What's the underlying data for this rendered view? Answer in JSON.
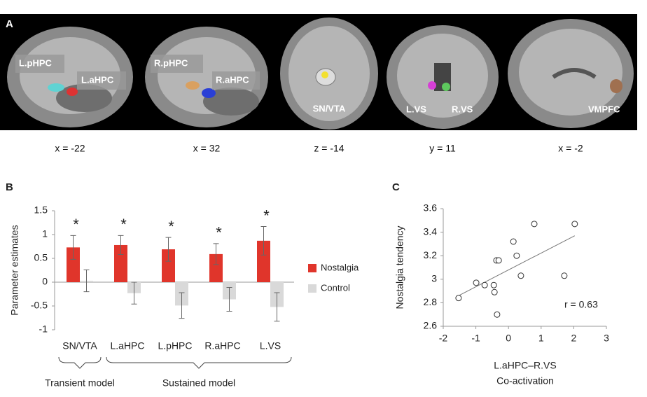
{
  "panel_a": {
    "label": "A",
    "images": [
      {
        "labels": [
          "L.pHPC",
          "L.aHPC"
        ],
        "coordinate": "x = -22"
      },
      {
        "labels": [
          "R.pHPC",
          "R.aHPC"
        ],
        "coordinate": "x = 32"
      },
      {
        "labels": [
          "SN/VTA"
        ],
        "coordinate": "z = -14"
      },
      {
        "labels": [
          "L.VS",
          "R.VS"
        ],
        "coordinate": "y = 11"
      },
      {
        "labels": [
          "VMPFC"
        ],
        "coordinate": "x = -2"
      }
    ]
  },
  "chart_data": [
    {
      "type": "bar",
      "panel_label": "B",
      "y_label": "Parameter estimates",
      "categories": [
        "SN/VTA",
        "L.aHPC",
        "L.pHPC",
        "R.aHPC",
        "L.VS"
      ],
      "series": [
        {
          "name": "Nostalgia",
          "color": "#e0352b",
          "values": [
            0.73,
            0.78,
            0.69,
            0.59,
            0.87
          ],
          "errors": [
            0.25,
            0.2,
            0.25,
            0.22,
            0.3
          ]
        },
        {
          "name": "Control",
          "color": "#d9d9d9",
          "values": [
            0.03,
            -0.23,
            -0.49,
            -0.36,
            -0.52
          ],
          "errors": [
            0.23,
            0.23,
            0.27,
            0.25,
            0.3
          ]
        }
      ],
      "annotations": [
        "*",
        "*",
        "*",
        "*",
        "*"
      ],
      "groups": [
        {
          "label": "Transient model",
          "categories": [
            0,
            0
          ]
        },
        {
          "label": "Sustained model",
          "categories": [
            1,
            4
          ]
        }
      ],
      "ylim": [
        -1,
        1.5
      ],
      "yticks": [
        -1,
        -0.5,
        0,
        0.5,
        1,
        1.5
      ],
      "legend": "right"
    },
    {
      "type": "scatter",
      "panel_label": "C",
      "y_label": "Nostalgia tendency",
      "x_label": [
        "L.aHPC–R.VS",
        "Co-activation"
      ],
      "x": [
        -1.53,
        -0.99,
        -0.73,
        -0.45,
        -0.43,
        -0.37,
        -0.3,
        -0.35,
        0.15,
        0.25,
        0.38,
        0.79,
        1.71,
        2.03
      ],
      "y": [
        2.84,
        2.97,
        2.95,
        2.95,
        2.89,
        3.16,
        3.16,
        2.7,
        3.32,
        3.2,
        3.03,
        3.47,
        3.03,
        3.47
      ],
      "trendline": {
        "x": [
          -1.53,
          2.03
        ],
        "y": [
          2.86,
          3.37
        ]
      },
      "annotation": "r = 0.63",
      "xlim": [
        -2,
        3
      ],
      "xticks": [
        -2,
        -1,
        0,
        1,
        2,
        3
      ],
      "ylim": [
        2.6,
        3.6
      ],
      "yticks": [
        2.6,
        2.8,
        3,
        3.2,
        3.4,
        3.6
      ]
    }
  ]
}
